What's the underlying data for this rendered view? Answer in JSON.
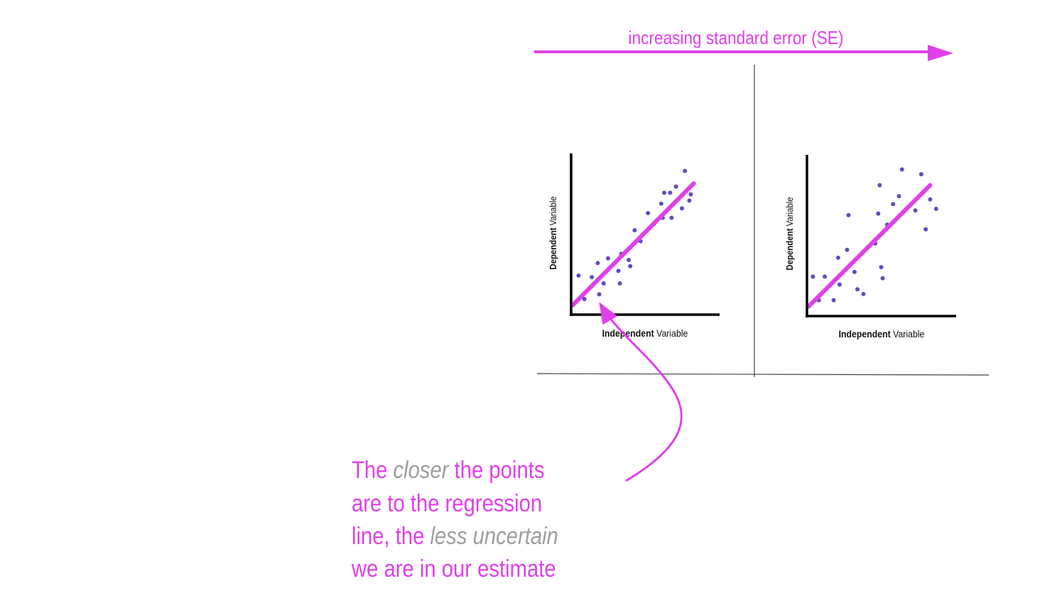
{
  "colors": {
    "accent": "#e040e8",
    "point": "#5b4fbf",
    "axis": "#000000",
    "divider": "#444444",
    "emphasis": "#9e9e9e"
  },
  "header": {
    "arrow_label": "increasing standard error (SE)"
  },
  "chart_data": [
    {
      "type": "scatter",
      "xlabel_bold": "Independent",
      "xlabel_rest": " Variable",
      "ylabel_bold": "Dependent",
      "ylabel_rest": " Variable",
      "xlim": [
        0,
        100
      ],
      "ylim": [
        0,
        100
      ],
      "regression_line": [
        [
          1,
          6
        ],
        [
          83,
          84
        ]
      ],
      "points": [
        [
          5,
          25
        ],
        [
          9,
          10
        ],
        [
          14,
          24
        ],
        [
          18,
          33
        ],
        [
          19,
          13
        ],
        [
          22,
          20
        ],
        [
          25,
          36
        ],
        [
          32,
          28
        ],
        [
          33,
          20
        ],
        [
          34,
          39
        ],
        [
          39,
          35
        ],
        [
          40,
          31
        ],
        [
          43,
          54
        ],
        [
          47,
          47
        ],
        [
          52,
          65
        ],
        [
          56,
          58
        ],
        [
          61,
          71
        ],
        [
          62,
          62
        ],
        [
          63,
          78
        ],
        [
          67,
          78
        ],
        [
          68,
          62
        ],
        [
          71,
          82
        ],
        [
          75,
          68
        ],
        [
          77,
          92
        ],
        [
          80,
          73
        ],
        [
          81,
          77
        ]
      ]
    },
    {
      "type": "scatter",
      "xlabel_bold": "Independent",
      "xlabel_rest": " Variable",
      "ylabel_bold": "Dependent",
      "ylabel_rest": " Variable",
      "xlim": [
        0,
        100
      ],
      "ylim": [
        0,
        100
      ],
      "regression_line": [
        [
          1,
          6
        ],
        [
          83,
          83
        ]
      ],
      "points": [
        [
          4,
          25
        ],
        [
          8,
          10
        ],
        [
          12,
          25
        ],
        [
          18,
          10
        ],
        [
          21,
          37
        ],
        [
          22,
          20
        ],
        [
          27,
          42
        ],
        [
          28,
          64
        ],
        [
          32,
          28
        ],
        [
          34,
          17
        ],
        [
          38,
          14
        ],
        [
          46,
          46
        ],
        [
          48,
          65
        ],
        [
          49,
          83
        ],
        [
          50,
          31
        ],
        [
          51,
          24
        ],
        [
          54,
          58
        ],
        [
          58,
          71
        ],
        [
          62,
          76
        ],
        [
          64,
          93
        ],
        [
          73,
          67
        ],
        [
          77,
          90
        ],
        [
          80,
          55
        ],
        [
          83,
          74
        ],
        [
          87,
          68
        ]
      ]
    }
  ],
  "caption": {
    "line1_a": "The ",
    "line1_b": "closer",
    "line1_c": " the points",
    "line2": "are to the regression",
    "line3_a": "line, the ",
    "line3_b": "less uncertain",
    "line4": "we are in our estimate"
  }
}
